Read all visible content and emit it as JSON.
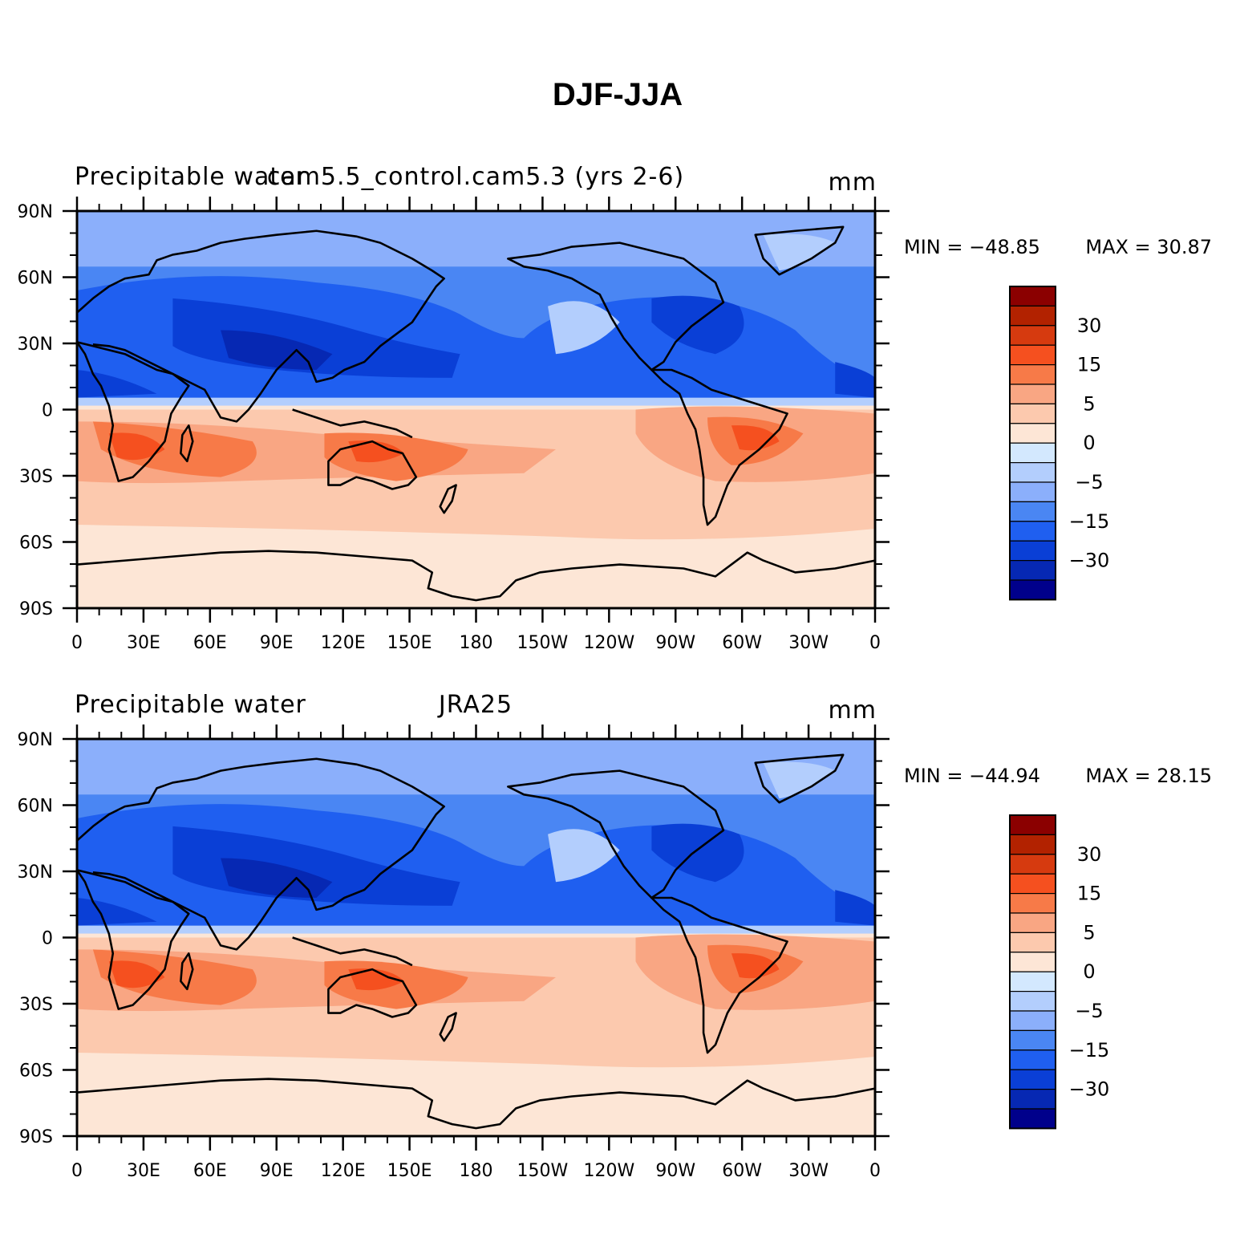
{
  "figure": {
    "title": "DJF-JJA"
  },
  "panels": [
    {
      "left_title": "Precipitable water",
      "center_title": "cam5.5_control.cam5.3 (yrs 2-6)",
      "units": "mm",
      "min_label": "MIN = −48.85",
      "max_label": "MAX =   30.87"
    },
    {
      "left_title": "Precipitable water",
      "center_title": "JRA25",
      "units": "mm",
      "min_label": "MIN = −44.94",
      "max_label": "MAX =   28.15"
    }
  ],
  "axes": {
    "lat_labels": [
      "90N",
      "60N",
      "30N",
      "0",
      "30S",
      "60S",
      "90S"
    ],
    "lon_labels": [
      "0",
      "30E",
      "60E",
      "90E",
      "120E",
      "150E",
      "180",
      "150W",
      "120W",
      "90W",
      "60W",
      "30W",
      "0"
    ]
  },
  "colorbar": {
    "colors": [
      "#8b0000",
      "#b22200",
      "#d63a0f",
      "#f5501f",
      "#f77a48",
      "#f9a683",
      "#fcc9ae",
      "#fde6d6",
      "#d3e8fe",
      "#b3cefd",
      "#8baffb",
      "#4a86f3",
      "#1f5ff0",
      "#0a3fd6",
      "#0628b3",
      "#00008b"
    ],
    "labels": [
      "30",
      "15",
      "5",
      "0",
      "−5",
      "−15",
      "−30"
    ]
  }
}
